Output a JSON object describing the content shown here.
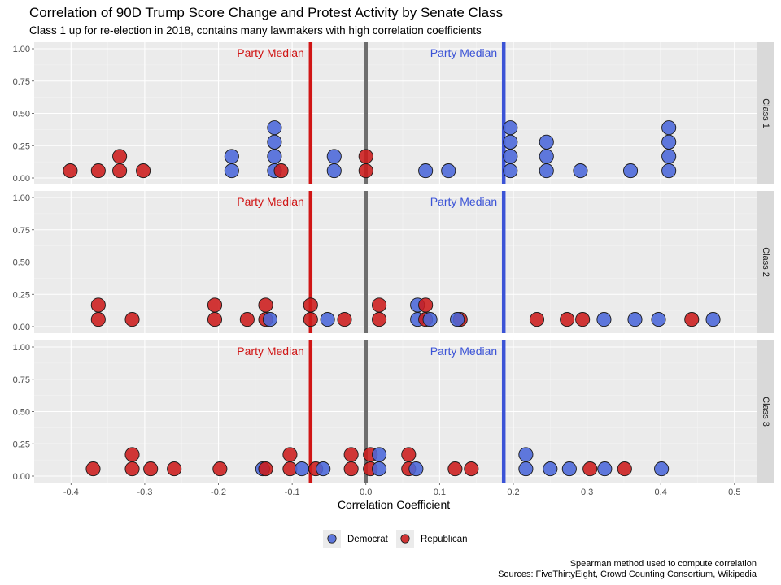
{
  "title": "Correlation of 90D Trump Score Change and Protest Activity by Senate Class",
  "subtitle": "Class 1 up for re-election in 2018, contains many lawmakers with high correlation coefficients",
  "caption": [
    "Spearman method used to compute correlation",
    "Sources: FiveThirtyEight, Crowd Counting Consortium, Wikipedia"
  ],
  "colors": {
    "Democrat": "#4a66d9",
    "Republican": "#cc1b1b",
    "zero_line": "#6e6e6e",
    "dem_median": "#3b53d6",
    "rep_median": "#d01515"
  },
  "chart_data": {
    "type": "dotplot",
    "xlabel": "Correlation Coefficient",
    "ylabel": "",
    "xlim": [
      -0.45,
      0.53
    ],
    "ylim": [
      0,
      1
    ],
    "x_ticks": [
      "-0.4",
      "-0.3",
      "-0.2",
      "-0.1",
      "0.0",
      "0.1",
      "0.2",
      "0.3",
      "0.4",
      "0.5"
    ],
    "x_tick_values": [
      -0.4,
      -0.3,
      -0.2,
      -0.1,
      0.0,
      0.1,
      0.2,
      0.3,
      0.4,
      0.5
    ],
    "y_ticks": [
      "0.00",
      "0.25",
      "0.50",
      "0.75",
      "1.00"
    ],
    "y_tick_values": [
      0,
      0.25,
      0.5,
      0.75,
      1.0
    ],
    "reference_line": 0,
    "median_label": "Party Median",
    "legend": [
      {
        "name": "Democrat",
        "color": "#4a66d9"
      },
      {
        "name": "Republican",
        "color": "#cc1b1b"
      }
    ],
    "panels": [
      {
        "name": "Class 1",
        "rep_median": -0.075,
        "dem_median": 0.187,
        "points": [
          {
            "x": -0.401,
            "y": 0.056,
            "party": "Republican"
          },
          {
            "x": -0.363,
            "y": 0.056,
            "party": "Republican"
          },
          {
            "x": -0.334,
            "y": 0.056,
            "party": "Republican"
          },
          {
            "x": -0.334,
            "y": 0.167,
            "party": "Republican"
          },
          {
            "x": -0.302,
            "y": 0.056,
            "party": "Republican"
          },
          {
            "x": -0.182,
            "y": 0.056,
            "party": "Democrat"
          },
          {
            "x": -0.182,
            "y": 0.167,
            "party": "Democrat"
          },
          {
            "x": -0.124,
            "y": 0.056,
            "party": "Democrat"
          },
          {
            "x": -0.124,
            "y": 0.167,
            "party": "Democrat"
          },
          {
            "x": -0.124,
            "y": 0.278,
            "party": "Democrat"
          },
          {
            "x": -0.124,
            "y": 0.389,
            "party": "Democrat"
          },
          {
            "x": -0.115,
            "y": 0.056,
            "party": "Republican"
          },
          {
            "x": -0.043,
            "y": 0.056,
            "party": "Democrat"
          },
          {
            "x": -0.043,
            "y": 0.167,
            "party": "Democrat"
          },
          {
            "x": 0.0,
            "y": 0.056,
            "party": "Republican"
          },
          {
            "x": 0.0,
            "y": 0.167,
            "party": "Republican"
          },
          {
            "x": 0.081,
            "y": 0.056,
            "party": "Democrat"
          },
          {
            "x": 0.112,
            "y": 0.056,
            "party": "Democrat"
          },
          {
            "x": 0.196,
            "y": 0.056,
            "party": "Democrat"
          },
          {
            "x": 0.196,
            "y": 0.167,
            "party": "Democrat"
          },
          {
            "x": 0.196,
            "y": 0.278,
            "party": "Democrat"
          },
          {
            "x": 0.196,
            "y": 0.389,
            "party": "Democrat"
          },
          {
            "x": 0.245,
            "y": 0.056,
            "party": "Democrat"
          },
          {
            "x": 0.245,
            "y": 0.167,
            "party": "Democrat"
          },
          {
            "x": 0.245,
            "y": 0.278,
            "party": "Democrat"
          },
          {
            "x": 0.291,
            "y": 0.056,
            "party": "Democrat"
          },
          {
            "x": 0.359,
            "y": 0.056,
            "party": "Democrat"
          },
          {
            "x": 0.411,
            "y": 0.056,
            "party": "Democrat"
          },
          {
            "x": 0.411,
            "y": 0.167,
            "party": "Democrat"
          },
          {
            "x": 0.411,
            "y": 0.278,
            "party": "Democrat"
          },
          {
            "x": 0.411,
            "y": 0.389,
            "party": "Democrat"
          }
        ]
      },
      {
        "name": "Class 2",
        "rep_median": -0.075,
        "dem_median": 0.187,
        "points": [
          {
            "x": -0.363,
            "y": 0.056,
            "party": "Republican"
          },
          {
            "x": -0.363,
            "y": 0.167,
            "party": "Republican"
          },
          {
            "x": -0.317,
            "y": 0.056,
            "party": "Republican"
          },
          {
            "x": -0.205,
            "y": 0.056,
            "party": "Republican"
          },
          {
            "x": -0.205,
            "y": 0.167,
            "party": "Republican"
          },
          {
            "x": -0.161,
            "y": 0.056,
            "party": "Republican"
          },
          {
            "x": -0.136,
            "y": 0.056,
            "party": "Republican"
          },
          {
            "x": -0.136,
            "y": 0.167,
            "party": "Republican"
          },
          {
            "x": -0.13,
            "y": 0.056,
            "party": "Democrat"
          },
          {
            "x": -0.075,
            "y": 0.056,
            "party": "Republican"
          },
          {
            "x": -0.075,
            "y": 0.167,
            "party": "Republican"
          },
          {
            "x": -0.052,
            "y": 0.056,
            "party": "Democrat"
          },
          {
            "x": -0.029,
            "y": 0.056,
            "party": "Republican"
          },
          {
            "x": 0.018,
            "y": 0.056,
            "party": "Republican"
          },
          {
            "x": 0.018,
            "y": 0.167,
            "party": "Republican"
          },
          {
            "x": 0.07,
            "y": 0.056,
            "party": "Democrat"
          },
          {
            "x": 0.07,
            "y": 0.167,
            "party": "Democrat"
          },
          {
            "x": 0.081,
            "y": 0.056,
            "party": "Republican"
          },
          {
            "x": 0.081,
            "y": 0.167,
            "party": "Republican"
          },
          {
            "x": 0.087,
            "y": 0.056,
            "party": "Democrat"
          },
          {
            "x": 0.128,
            "y": 0.056,
            "party": "Republican"
          },
          {
            "x": 0.124,
            "y": 0.056,
            "party": "Democrat"
          },
          {
            "x": 0.232,
            "y": 0.056,
            "party": "Republican"
          },
          {
            "x": 0.273,
            "y": 0.056,
            "party": "Republican"
          },
          {
            "x": 0.294,
            "y": 0.056,
            "party": "Republican"
          },
          {
            "x": 0.323,
            "y": 0.056,
            "party": "Democrat"
          },
          {
            "x": 0.365,
            "y": 0.056,
            "party": "Democrat"
          },
          {
            "x": 0.397,
            "y": 0.056,
            "party": "Democrat"
          },
          {
            "x": 0.442,
            "y": 0.056,
            "party": "Republican"
          },
          {
            "x": 0.471,
            "y": 0.056,
            "party": "Democrat"
          }
        ]
      },
      {
        "name": "Class 3",
        "rep_median": -0.075,
        "dem_median": 0.187,
        "points": [
          {
            "x": -0.37,
            "y": 0.056,
            "party": "Republican"
          },
          {
            "x": -0.317,
            "y": 0.056,
            "party": "Republican"
          },
          {
            "x": -0.317,
            "y": 0.167,
            "party": "Republican"
          },
          {
            "x": -0.292,
            "y": 0.056,
            "party": "Republican"
          },
          {
            "x": -0.26,
            "y": 0.056,
            "party": "Republican"
          },
          {
            "x": -0.198,
            "y": 0.056,
            "party": "Republican"
          },
          {
            "x": -0.14,
            "y": 0.056,
            "party": "Democrat"
          },
          {
            "x": -0.136,
            "y": 0.056,
            "party": "Republican"
          },
          {
            "x": -0.103,
            "y": 0.056,
            "party": "Republican"
          },
          {
            "x": -0.103,
            "y": 0.167,
            "party": "Republican"
          },
          {
            "x": -0.087,
            "y": 0.056,
            "party": "Democrat"
          },
          {
            "x": -0.068,
            "y": 0.056,
            "party": "Republican"
          },
          {
            "x": -0.058,
            "y": 0.056,
            "party": "Democrat"
          },
          {
            "x": -0.02,
            "y": 0.056,
            "party": "Republican"
          },
          {
            "x": -0.02,
            "y": 0.167,
            "party": "Republican"
          },
          {
            "x": 0.006,
            "y": 0.056,
            "party": "Republican"
          },
          {
            "x": 0.006,
            "y": 0.167,
            "party": "Republican"
          },
          {
            "x": 0.018,
            "y": 0.056,
            "party": "Democrat"
          },
          {
            "x": 0.018,
            "y": 0.167,
            "party": "Democrat"
          },
          {
            "x": 0.058,
            "y": 0.056,
            "party": "Republican"
          },
          {
            "x": 0.058,
            "y": 0.167,
            "party": "Republican"
          },
          {
            "x": 0.068,
            "y": 0.056,
            "party": "Democrat"
          },
          {
            "x": 0.121,
            "y": 0.056,
            "party": "Republican"
          },
          {
            "x": 0.143,
            "y": 0.056,
            "party": "Republican"
          },
          {
            "x": 0.217,
            "y": 0.056,
            "party": "Democrat"
          },
          {
            "x": 0.217,
            "y": 0.167,
            "party": "Democrat"
          },
          {
            "x": 0.25,
            "y": 0.056,
            "party": "Democrat"
          },
          {
            "x": 0.276,
            "y": 0.056,
            "party": "Democrat"
          },
          {
            "x": 0.304,
            "y": 0.056,
            "party": "Republican"
          },
          {
            "x": 0.324,
            "y": 0.056,
            "party": "Democrat"
          },
          {
            "x": 0.351,
            "y": 0.056,
            "party": "Republican"
          },
          {
            "x": 0.401,
            "y": 0.056,
            "party": "Democrat"
          }
        ]
      }
    ]
  }
}
